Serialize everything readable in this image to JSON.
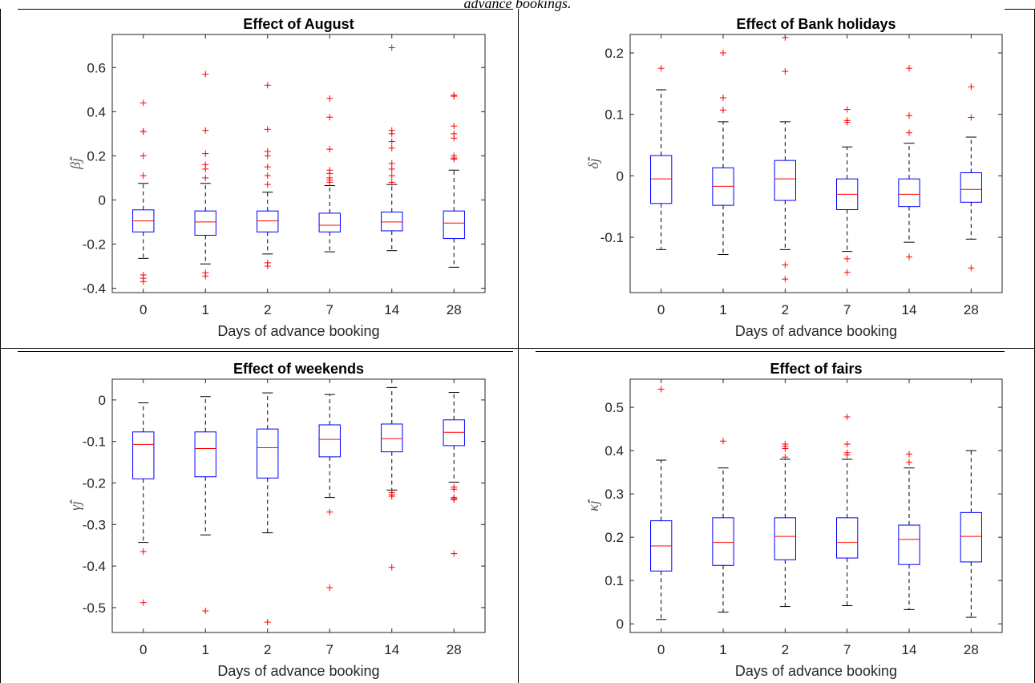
{
  "caption": "advance bookings.",
  "colors": {
    "box": "#0000ff",
    "median": "#ff0000",
    "outlier": "#ff0000",
    "whisker": "#000000"
  },
  "chart_data": [
    {
      "type": "box",
      "title": "Effect of August",
      "xlabel": "Days of advance booking",
      "ylabel": "β̂j",
      "categories": [
        "0",
        "1",
        "2",
        "7",
        "14",
        "28"
      ],
      "ylim": [
        -0.42,
        0.75
      ],
      "yticks": [
        -0.4,
        -0.2,
        0,
        0.2,
        0.4,
        0.6
      ],
      "ytick_labels": [
        "-0.4",
        "-0.2",
        "0",
        "0.2",
        "0.4",
        "0.6"
      ],
      "grid": false,
      "boxes": [
        {
          "q1": -0.145,
          "median": -0.095,
          "q3": -0.045,
          "whisker_low": -0.265,
          "whisker_high": 0.075,
          "outliers": [
            0.44,
            0.31,
            0.31,
            0.2,
            0.11,
            -0.34,
            -0.355,
            -0.37
          ]
        },
        {
          "q1": -0.16,
          "median": -0.1,
          "q3": -0.05,
          "whisker_low": -0.29,
          "whisker_high": 0.075,
          "outliers": [
            0.57,
            0.315,
            0.21,
            0.16,
            0.14,
            0.1,
            -0.33,
            -0.345
          ]
        },
        {
          "q1": -0.145,
          "median": -0.095,
          "q3": -0.05,
          "whisker_low": -0.245,
          "whisker_high": 0.035,
          "outliers": [
            0.52,
            0.32,
            0.22,
            0.2,
            0.15,
            0.11,
            0.07,
            -0.285,
            -0.3
          ]
        },
        {
          "q1": -0.145,
          "median": -0.115,
          "q3": -0.06,
          "whisker_low": -0.235,
          "whisker_high": 0.065,
          "outliers": [
            0.46,
            0.375,
            0.23,
            0.135,
            0.12,
            0.1,
            0.09,
            0.08
          ]
        },
        {
          "q1": -0.14,
          "median": -0.1,
          "q3": -0.055,
          "whisker_low": -0.23,
          "whisker_high": 0.07,
          "outliers": [
            0.69,
            0.315,
            0.3,
            0.265,
            0.235,
            0.165,
            0.14,
            0.11,
            0.08
          ]
        },
        {
          "q1": -0.175,
          "median": -0.105,
          "q3": -0.05,
          "whisker_low": -0.305,
          "whisker_high": 0.135,
          "outliers": [
            0.475,
            0.47,
            0.335,
            0.3,
            0.28,
            0.2,
            0.19,
            0.185
          ]
        }
      ]
    },
    {
      "type": "box",
      "title": "Effect of Bank holidays",
      "xlabel": "Days of advance booking",
      "ylabel": "δ̂j",
      "categories": [
        "0",
        "1",
        "2",
        "7",
        "14",
        "28"
      ],
      "ylim": [
        -0.19,
        0.23
      ],
      "yticks": [
        -0.1,
        0,
        0.1,
        0.2
      ],
      "ytick_labels": [
        "-0.1",
        "0",
        "0.1",
        "0.2"
      ],
      "grid": false,
      "boxes": [
        {
          "q1": -0.045,
          "median": -0.005,
          "q3": 0.033,
          "whisker_low": -0.12,
          "whisker_high": 0.14,
          "outliers": [
            0.175
          ]
        },
        {
          "q1": -0.048,
          "median": -0.017,
          "q3": 0.013,
          "whisker_low": -0.128,
          "whisker_high": 0.088,
          "outliers": [
            0.2,
            0.127,
            0.107
          ]
        },
        {
          "q1": -0.04,
          "median": -0.005,
          "q3": 0.025,
          "whisker_low": -0.12,
          "whisker_high": 0.088,
          "outliers": [
            0.225,
            0.17,
            -0.145,
            -0.168
          ]
        },
        {
          "q1": -0.055,
          "median": -0.03,
          "q3": -0.005,
          "whisker_low": -0.123,
          "whisker_high": 0.047,
          "outliers": [
            0.108,
            0.09,
            0.087,
            -0.135,
            -0.157
          ]
        },
        {
          "q1": -0.05,
          "median": -0.03,
          "q3": -0.005,
          "whisker_low": -0.108,
          "whisker_high": 0.053,
          "outliers": [
            0.175,
            0.098,
            0.07,
            -0.132
          ]
        },
        {
          "q1": -0.043,
          "median": -0.022,
          "q3": 0.005,
          "whisker_low": -0.103,
          "whisker_high": 0.063,
          "outliers": [
            0.145,
            0.095,
            -0.15
          ]
        }
      ]
    },
    {
      "type": "box",
      "title": "Effect of weekends",
      "xlabel": "Days of advance booking",
      "ylabel": "γ̂j",
      "categories": [
        "0",
        "1",
        "2",
        "7",
        "14",
        "28"
      ],
      "ylim": [
        -0.56,
        0.05
      ],
      "yticks": [
        -0.5,
        -0.4,
        -0.3,
        -0.2,
        -0.1,
        0
      ],
      "ytick_labels": [
        "-0.5",
        "-0.4",
        "-0.3",
        "-0.2",
        "-0.1",
        "0"
      ],
      "grid": false,
      "boxes": [
        {
          "q1": -0.19,
          "median": -0.107,
          "q3": -0.077,
          "whisker_low": -0.343,
          "whisker_high": -0.007,
          "outliers": [
            -0.365,
            -0.488
          ]
        },
        {
          "q1": -0.185,
          "median": -0.117,
          "q3": -0.077,
          "whisker_low": -0.325,
          "whisker_high": 0.008,
          "outliers": [
            -0.508
          ]
        },
        {
          "q1": -0.188,
          "median": -0.115,
          "q3": -0.07,
          "whisker_low": -0.32,
          "whisker_high": 0.017,
          "outliers": [
            -0.535
          ]
        },
        {
          "q1": -0.137,
          "median": -0.095,
          "q3": -0.06,
          "whisker_low": -0.235,
          "whisker_high": 0.013,
          "outliers": [
            -0.27,
            -0.452
          ]
        },
        {
          "q1": -0.125,
          "median": -0.093,
          "q3": -0.058,
          "whisker_low": -0.217,
          "whisker_high": 0.03,
          "outliers": [
            -0.223,
            -0.228,
            -0.232,
            -0.403
          ]
        },
        {
          "q1": -0.11,
          "median": -0.078,
          "q3": -0.048,
          "whisker_low": -0.198,
          "whisker_high": 0.018,
          "outliers": [
            -0.21,
            -0.215,
            -0.235,
            -0.238,
            -0.24,
            -0.37
          ]
        }
      ]
    },
    {
      "type": "box",
      "title": "Effect of fairs",
      "xlabel": "Days of advance booking",
      "ylabel": "κ̂j",
      "categories": [
        "0",
        "1",
        "2",
        "7",
        "14",
        "28"
      ],
      "ylim": [
        -0.02,
        0.565
      ],
      "yticks": [
        0,
        0.1,
        0.2,
        0.3,
        0.4,
        0.5
      ],
      "ytick_labels": [
        "0",
        "0.1",
        "0.2",
        "0.3",
        "0.4",
        "0.5"
      ],
      "grid": false,
      "boxes": [
        {
          "q1": 0.122,
          "median": 0.18,
          "q3": 0.238,
          "whisker_low": 0.01,
          "whisker_high": 0.378,
          "outliers": [
            0.542
          ]
        },
        {
          "q1": 0.135,
          "median": 0.188,
          "q3": 0.245,
          "whisker_low": 0.027,
          "whisker_high": 0.36,
          "outliers": [
            0.422
          ]
        },
        {
          "q1": 0.148,
          "median": 0.202,
          "q3": 0.245,
          "whisker_low": 0.04,
          "whisker_high": 0.38,
          "outliers": [
            0.415,
            0.41,
            0.405,
            0.385
          ]
        },
        {
          "q1": 0.152,
          "median": 0.188,
          "q3": 0.245,
          "whisker_low": 0.042,
          "whisker_high": 0.38,
          "outliers": [
            0.478,
            0.415,
            0.395,
            0.39
          ]
        },
        {
          "q1": 0.137,
          "median": 0.195,
          "q3": 0.228,
          "whisker_low": 0.033,
          "whisker_high": 0.36,
          "outliers": [
            0.392,
            0.373
          ]
        },
        {
          "q1": 0.143,
          "median": 0.202,
          "q3": 0.257,
          "whisker_low": 0.015,
          "whisker_high": 0.4,
          "outliers": []
        }
      ]
    }
  ]
}
